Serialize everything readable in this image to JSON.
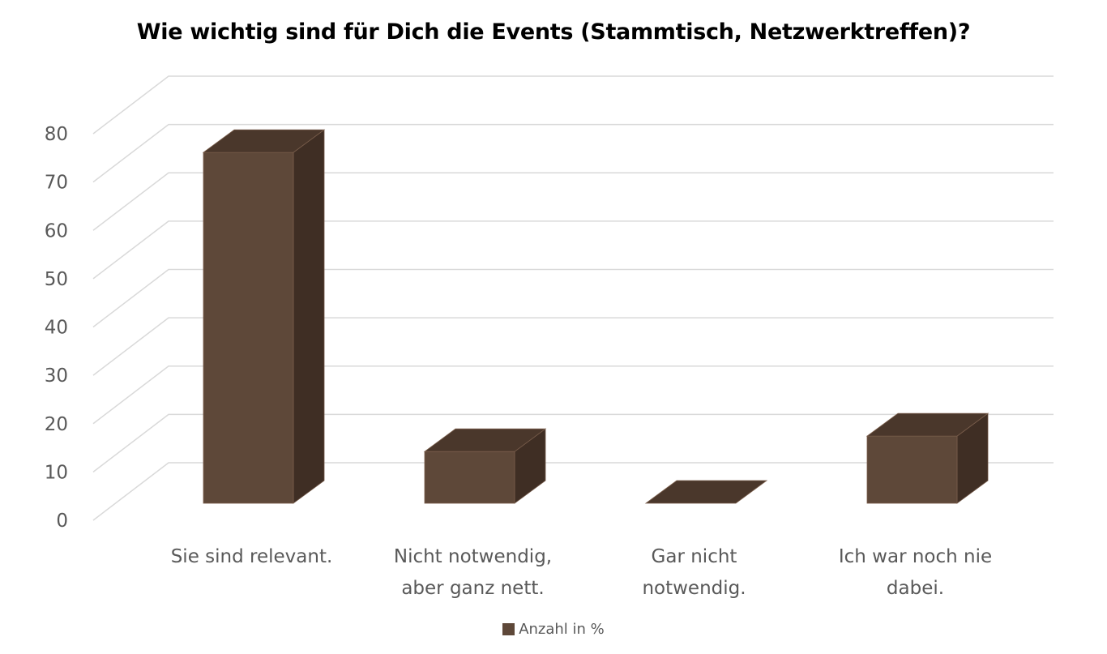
{
  "chart_data": {
    "type": "bar",
    "style": "3d-column",
    "title": "Wie wichtig sind für Dich die Events (Stammtisch, Netzwerktreffen)?",
    "xlabel": "",
    "ylabel": "",
    "ylim": [
      0,
      80
    ],
    "yticks": [
      0,
      10,
      20,
      30,
      40,
      50,
      60,
      70,
      80
    ],
    "grid": true,
    "legend_position": "bottom",
    "categories": [
      [
        "Sie sind relevant."
      ],
      [
        "Nicht notwendig,",
        "aber ganz nett."
      ],
      [
        "Gar nicht",
        "notwendig."
      ],
      [
        "Ich war noch nie",
        "dabei."
      ]
    ],
    "series": [
      {
        "name": "Anzahl in %",
        "values": [
          72.6,
          10.7,
          0,
          13.9
        ],
        "color": "#5e4839",
        "top_color": "#4a372b",
        "side_color": "#3f2e24"
      }
    ]
  }
}
